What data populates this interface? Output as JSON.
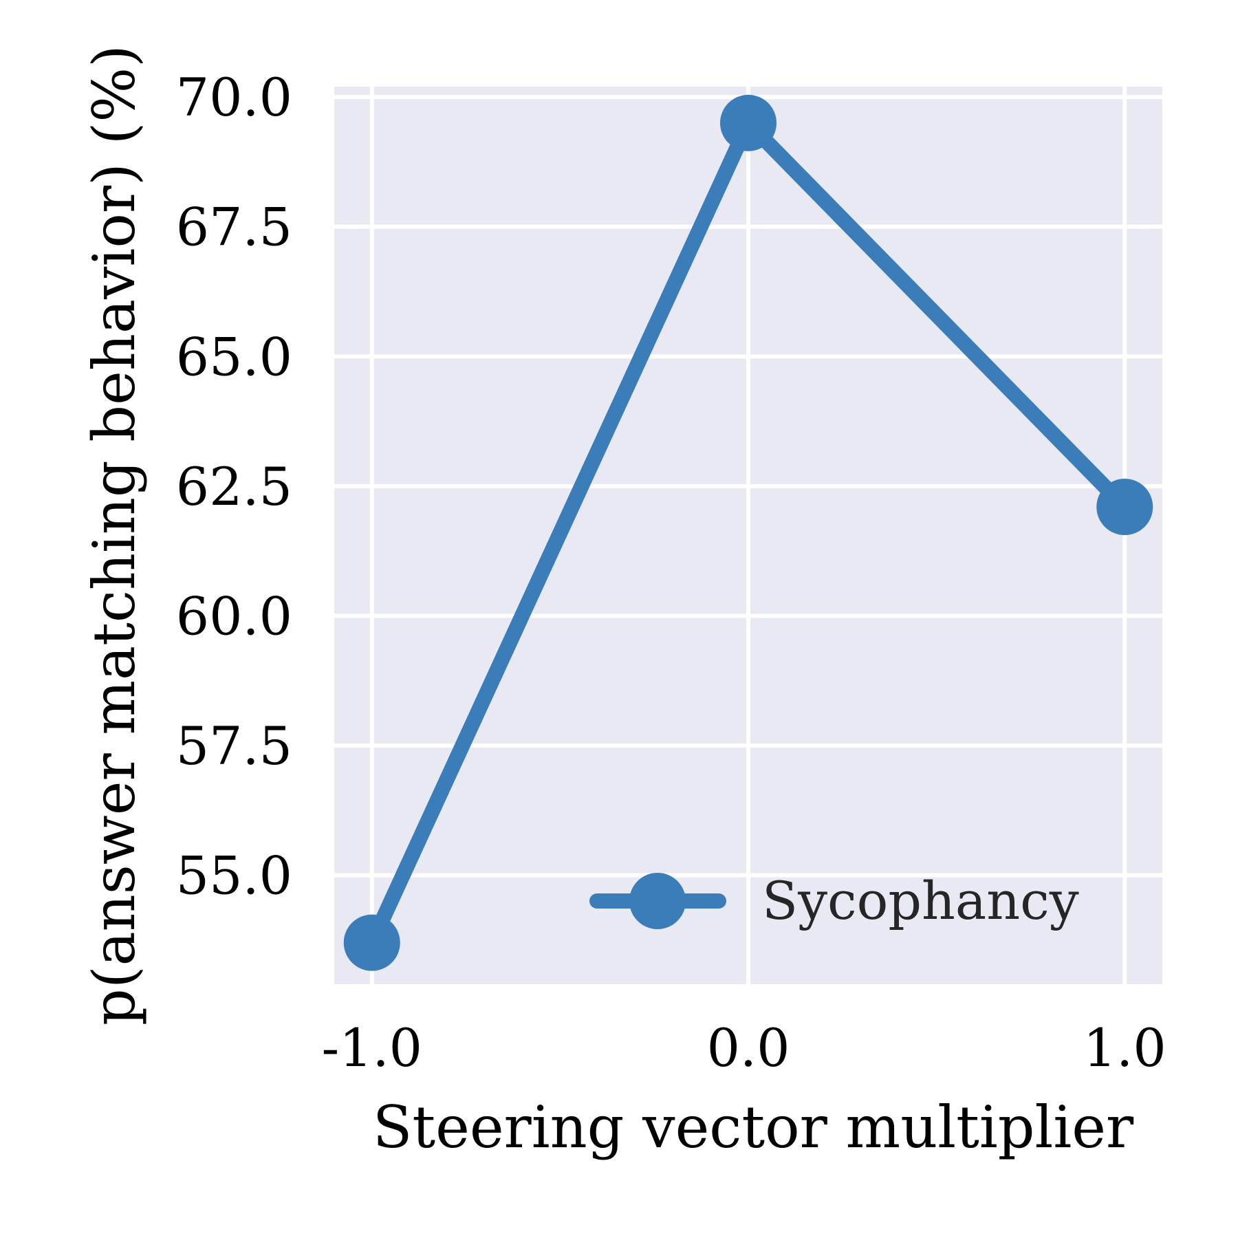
{
  "chart_data": {
    "type": "line",
    "xlabel": "Steering vector multiplier",
    "ylabel": "p(answer matching behavior) (%)",
    "x": [
      -1.0,
      0.0,
      1.0
    ],
    "x_tick_labels": [
      "-1.0",
      "0.0",
      "1.0"
    ],
    "xlim": [
      -1.1,
      1.1
    ],
    "ylim": [
      52.9,
      70.2
    ],
    "y_ticks": [
      55.0,
      57.5,
      60.0,
      62.5,
      65.0,
      67.5,
      70.0
    ],
    "y_tick_labels": [
      "55.0",
      "57.5",
      "60.0",
      "62.5",
      "65.0",
      "67.5",
      "70.0"
    ],
    "series": [
      {
        "name": "Sycophancy",
        "values": [
          53.7,
          69.5,
          62.1
        ],
        "color": "#3a7db8",
        "marker": "circle"
      }
    ],
    "grid": true,
    "legend_position": "bottom-right",
    "background_color": "#e8e9f2"
  }
}
